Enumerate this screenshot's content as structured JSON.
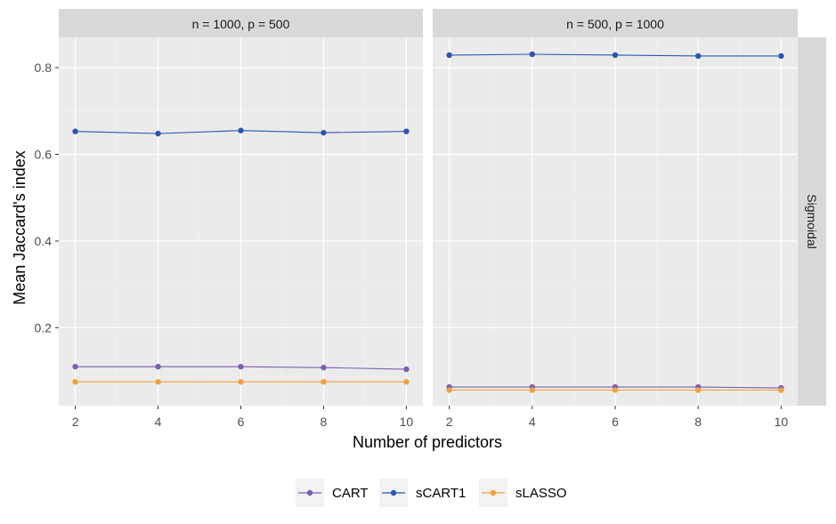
{
  "chart_data": {
    "type": "line",
    "xlabel": "Number of predictors",
    "ylabel": "Mean Jaccard's index",
    "x": [
      2,
      4,
      6,
      8,
      10
    ],
    "x_ticks": [
      2,
      4,
      6,
      8,
      10
    ],
    "xlim": [
      1.6,
      10.4
    ],
    "y_ticks": [
      0.2,
      0.4,
      0.6,
      0.8
    ],
    "ylim": [
      0.02,
      0.87
    ],
    "grid": true,
    "legend_position": "bottom",
    "row_strip": "Sigmoidal",
    "colors": {
      "CART": "#7b5fb0",
      "sCART1": "#2c55b0",
      "sLASSO": "#f0a03c"
    },
    "panels": [
      {
        "label": "n = 1000, p = 500",
        "series": [
          {
            "name": "CART",
            "values": [
              0.11,
              0.11,
              0.11,
              0.108,
              0.104
            ]
          },
          {
            "name": "sCART1",
            "values": [
              0.653,
              0.648,
              0.655,
              0.65,
              0.653
            ]
          },
          {
            "name": "sLASSO",
            "values": [
              0.075,
              0.075,
              0.075,
              0.075,
              0.075
            ]
          }
        ]
      },
      {
        "label": "n = 500, p = 1000",
        "series": [
          {
            "name": "CART",
            "values": [
              0.063,
              0.063,
              0.063,
              0.063,
              0.061
            ]
          },
          {
            "name": "sCART1",
            "values": [
              0.829,
              0.831,
              0.829,
              0.827,
              0.827
            ]
          },
          {
            "name": "sLASSO",
            "values": [
              0.056,
              0.056,
              0.056,
              0.056,
              0.056
            ]
          }
        ]
      }
    ]
  }
}
